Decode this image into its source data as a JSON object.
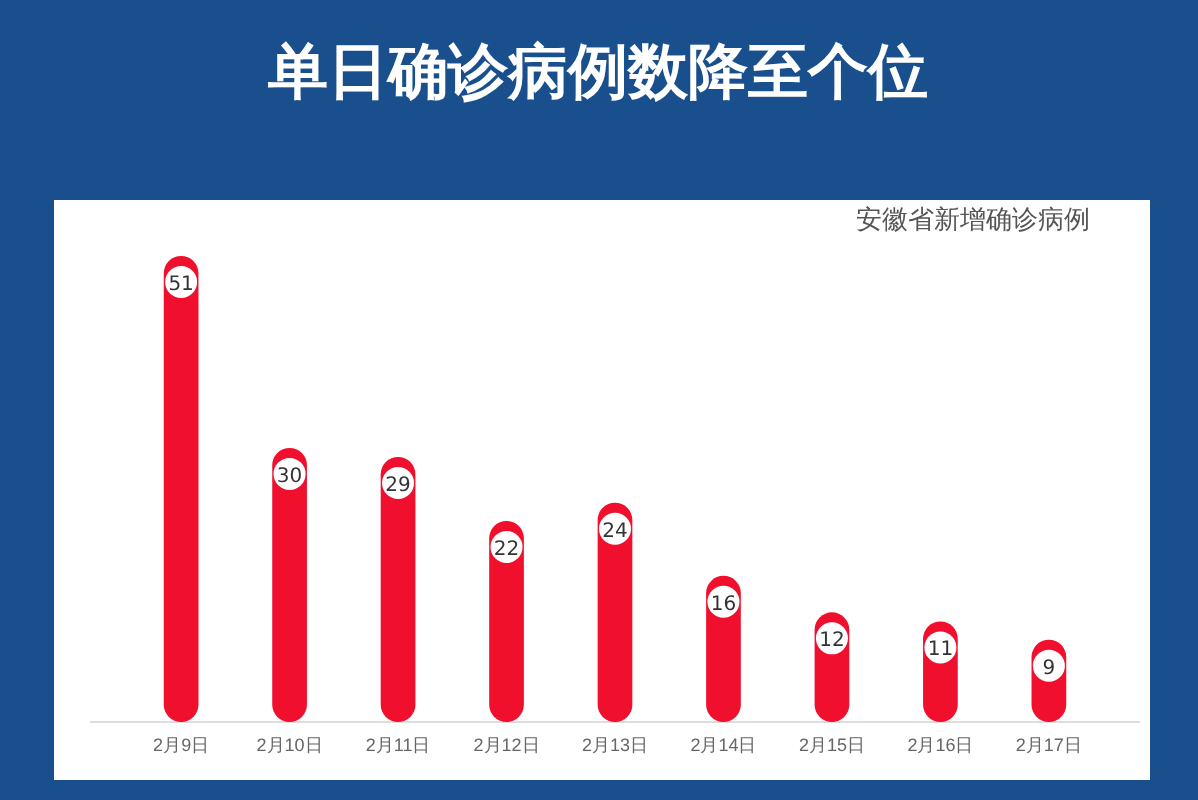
{
  "chart_data": {
    "type": "bar",
    "title": "单日确诊病例数降至个位",
    "subtitle": "安徽省新增确诊病例",
    "categories": [
      "2月9日",
      "2月10日",
      "2月11日",
      "2月12日",
      "2月13日",
      "2月14日",
      "2月15日",
      "2月16日",
      "2月17日"
    ],
    "values": [
      51,
      30,
      29,
      22,
      24,
      16,
      12,
      11,
      9
    ],
    "color": "#f0102e",
    "data_labels": true
  }
}
